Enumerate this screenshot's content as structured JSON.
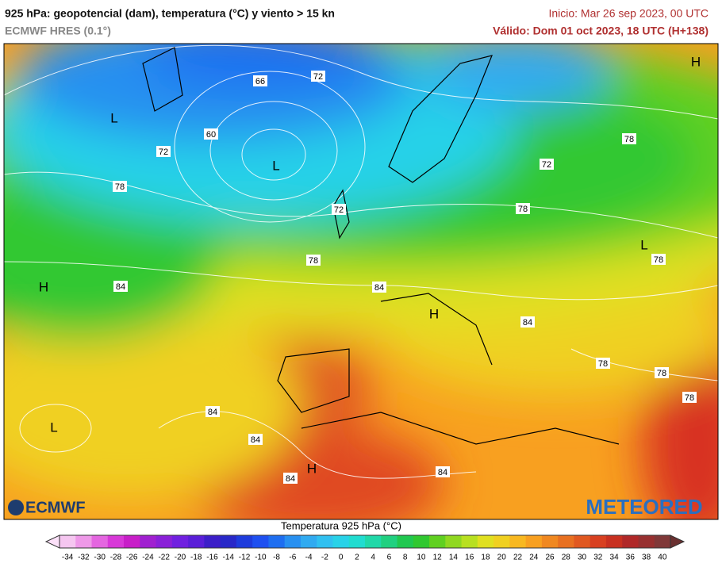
{
  "header": {
    "title": "925 hPa: geopotencial (dam), temperatura (°C) y viento > 15 kn",
    "model": "ECMWF HRES (0.1°)",
    "init": "Inicio: Mar 26 sep 2023, 00 UTC",
    "valid": "Válido: Dom 01 oct 2023, 18 UTC (H+138)"
  },
  "map": {
    "contour_labels": [
      66,
      72,
      60,
      72,
      78,
      72,
      78,
      84,
      84,
      78,
      72,
      78,
      78,
      84,
      78,
      78,
      78,
      84,
      84,
      84,
      84
    ],
    "centers": [
      "L",
      "L",
      "H",
      "H",
      "L",
      "H",
      "L",
      "H"
    ],
    "logos": [
      "ECMWF",
      "METEORED"
    ]
  },
  "legend": {
    "title": "Temperatura 925 hPa (°C)",
    "ticks": [
      -34,
      -32,
      -30,
      -28,
      -26,
      -24,
      -22,
      -20,
      -18,
      -16,
      -14,
      -12,
      -10,
      -8,
      -6,
      -4,
      -2,
      0,
      2,
      4,
      6,
      8,
      10,
      12,
      14,
      16,
      18,
      20,
      22,
      24,
      26,
      28,
      30,
      32,
      34,
      36,
      38,
      40
    ],
    "colors": [
      "#f5c6f0",
      "#ee99e8",
      "#e466e0",
      "#d838d8",
      "#c81ec8",
      "#a020d0",
      "#8a20d8",
      "#7020e0",
      "#5a1ed8",
      "#3c1ec8",
      "#2828c8",
      "#1e3cdc",
      "#1e50f0",
      "#1e6ef0",
      "#2890f0",
      "#30aaf0",
      "#30c0f0",
      "#28d2e8",
      "#20dcd0",
      "#20d8a8",
      "#20d080",
      "#20c850",
      "#30c830",
      "#60d020",
      "#90d820",
      "#b8e020",
      "#e0e020",
      "#f0d020",
      "#f8b820",
      "#f8a020",
      "#f08820",
      "#e87020",
      "#e05820",
      "#d84020",
      "#c83020",
      "#b02828",
      "#983030",
      "#803838"
    ]
  }
}
